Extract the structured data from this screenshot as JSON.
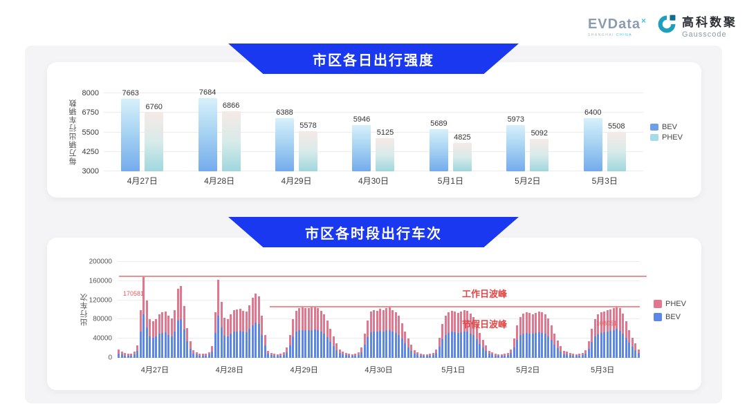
{
  "header": {
    "evdata_logo": {
      "text": "EVData",
      "sup": "×",
      "subtext_left": "SHANGHAI",
      "subtext_right": "CHINA"
    },
    "gausscode_logo": {
      "cn": "高科数聚",
      "en": "Gausscode"
    }
  },
  "colors": {
    "banner_blue": "#1a38f0",
    "bev_gradient_top": "#d7f0fb",
    "bev_gradient_bottom": "#74abec",
    "phev_gradient_top": "#f6e9e6",
    "phev_gradient_bottom": "#9fd7dd",
    "bev_solid": "#5c87e8",
    "phev_solid": "#e0778f",
    "legend1_bev": "#6f9fe8",
    "legend1_phev": "#a6dbe8",
    "annotation_red": "#e24545",
    "peak_line_red": "#ef8f8f"
  },
  "chart_data": [
    {
      "type": "bar",
      "title": "市区各日出行强度",
      "ylabel": "每万辆出行车辆数",
      "ylim": [
        3000,
        8000
      ],
      "y_ticks": [
        8000,
        6750,
        5500,
        4250,
        3000
      ],
      "grid": true,
      "legend_position": "right",
      "legend": [
        "BEV",
        "PHEV"
      ],
      "categories": [
        "4月27日",
        "4月28日",
        "4月29日",
        "4月30日",
        "5月1日",
        "5月2日",
        "5月3日"
      ],
      "series": [
        {
          "name": "BEV",
          "values": [
            7663,
            7684,
            6388,
            5946,
            5689,
            5973,
            6400
          ]
        },
        {
          "name": "PHEV",
          "values": [
            6760,
            6866,
            5578,
            5125,
            4825,
            5092,
            5508
          ]
        }
      ]
    },
    {
      "type": "bar",
      "subtype": "stacked-hourly",
      "title": "市区各时段出行车次",
      "ylabel": "出行车次",
      "ylim": [
        0,
        200000
      ],
      "y_ticks": [
        200000,
        160000,
        120000,
        80000,
        40000,
        0
      ],
      "grid": true,
      "legend_position": "right",
      "legend": [
        "PHEV",
        "BEV"
      ],
      "categories": [
        "4月27日",
        "4月28日",
        "4月29日",
        "4月30日",
        "5月1日",
        "5月2日",
        "5月3日"
      ],
      "hours_per_day": 24,
      "annotations": [
        {
          "label": "工作日波峰",
          "value": 170581,
          "value_label": "170581"
        },
        {
          "label": "节假日波峰",
          "value": 108051,
          "value_label": "108051"
        }
      ],
      "series": [
        {
          "name": "BEV",
          "values": [
            9000,
            7000,
            5000,
            4500,
            5000,
            7000,
            14000,
            55000,
            90000,
            64000,
            45000,
            42000,
            44000,
            50000,
            52000,
            53000,
            48000,
            45000,
            55000,
            78000,
            81000,
            59000,
            34000,
            19000,
            9000,
            6500,
            5000,
            4500,
            5000,
            6500,
            13000,
            52000,
            88000,
            63000,
            46000,
            45000,
            50000,
            54000,
            55000,
            56000,
            54000,
            53000,
            60000,
            68000,
            73000,
            70000,
            48000,
            26000,
            8000,
            5500,
            4500,
            4000,
            4500,
            6000,
            12000,
            26000,
            44000,
            54000,
            57000,
            58000,
            57000,
            57000,
            58000,
            59000,
            57000,
            54000,
            50000,
            43000,
            33000,
            25000,
            16000,
            10000,
            7000,
            5500,
            4500,
            4000,
            4500,
            6000,
            11500,
            27500,
            43000,
            53000,
            55000,
            54000,
            56000,
            55000,
            57000,
            58000,
            55000,
            52000,
            48000,
            40000,
            30000,
            22000,
            15000,
            9000,
            6500,
            5000,
            4000,
            4000,
            4500,
            5500,
            10000,
            23000,
            38500,
            48000,
            52000,
            54000,
            53000,
            52000,
            53000,
            55000,
            54000,
            51000,
            47000,
            38500,
            28500,
            21000,
            14000,
            8000,
            6500,
            5000,
            4000,
            4000,
            4500,
            5500,
            9500,
            22000,
            37000,
            47000,
            51000,
            52000,
            51000,
            50000,
            52000,
            53000,
            52000,
            50000,
            45000,
            37000,
            27500,
            20000,
            13000,
            7500,
            7000,
            5500,
            4500,
            4000,
            4500,
            5500,
            9000,
            19000,
            33000,
            44000,
            49500,
            52000,
            53500,
            54500,
            55500,
            57000,
            60000,
            56500,
            50500,
            42000,
            32000,
            23000,
            16500,
            10000
          ]
        },
        {
          "name": "PHEV",
          "values": [
            8000,
            6000,
            4500,
            3500,
            4000,
            6000,
            12000,
            45000,
            80581,
            55000,
            36000,
            34000,
            36000,
            40000,
            43000,
            43000,
            40000,
            37000,
            45000,
            66000,
            69000,
            49000,
            28000,
            16000,
            7000,
            5500,
            4000,
            3500,
            4000,
            5500,
            11000,
            43000,
            75000,
            54000,
            37000,
            36000,
            40000,
            45000,
            46000,
            46000,
            44000,
            43000,
            50000,
            57000,
            61000,
            58000,
            40000,
            22000,
            6000,
            4500,
            3500,
            3000,
            3500,
            5000,
            10000,
            22000,
            36000,
            44000,
            47000,
            48000,
            47000,
            46000,
            47000,
            48000,
            47000,
            44000,
            40000,
            35000,
            27000,
            20000,
            14000,
            8000,
            6000,
            4500,
            3500,
            3000,
            3500,
            5000,
            9500,
            22500,
            35000,
            43000,
            45000,
            44000,
            46000,
            45000,
            46000,
            47000,
            45000,
            43000,
            40000,
            32000,
            25000,
            18000,
            13000,
            7000,
            5500,
            4000,
            3500,
            3000,
            3500,
            4500,
            8000,
            19000,
            31500,
            40000,
            43000,
            44000,
            43000,
            42000,
            44000,
            45000,
            44000,
            41000,
            38000,
            31500,
            23500,
            17000,
            12000,
            7000,
            5500,
            4000,
            3500,
            3000,
            3500,
            4500,
            7500,
            18000,
            31000,
            38000,
            41000,
            43000,
            42000,
            41000,
            42000,
            44000,
            43000,
            40000,
            37000,
            31000,
            22500,
            16000,
            11000,
            6500,
            6000,
            4500,
            3500,
            3000,
            3500,
            4500,
            7000,
            16000,
            27000,
            36000,
            40500,
            43000,
            43500,
            44500,
            45500,
            47000,
            48051,
            46500,
            41500,
            34000,
            26000,
            19000,
            13500,
            8000
          ]
        }
      ]
    }
  ]
}
